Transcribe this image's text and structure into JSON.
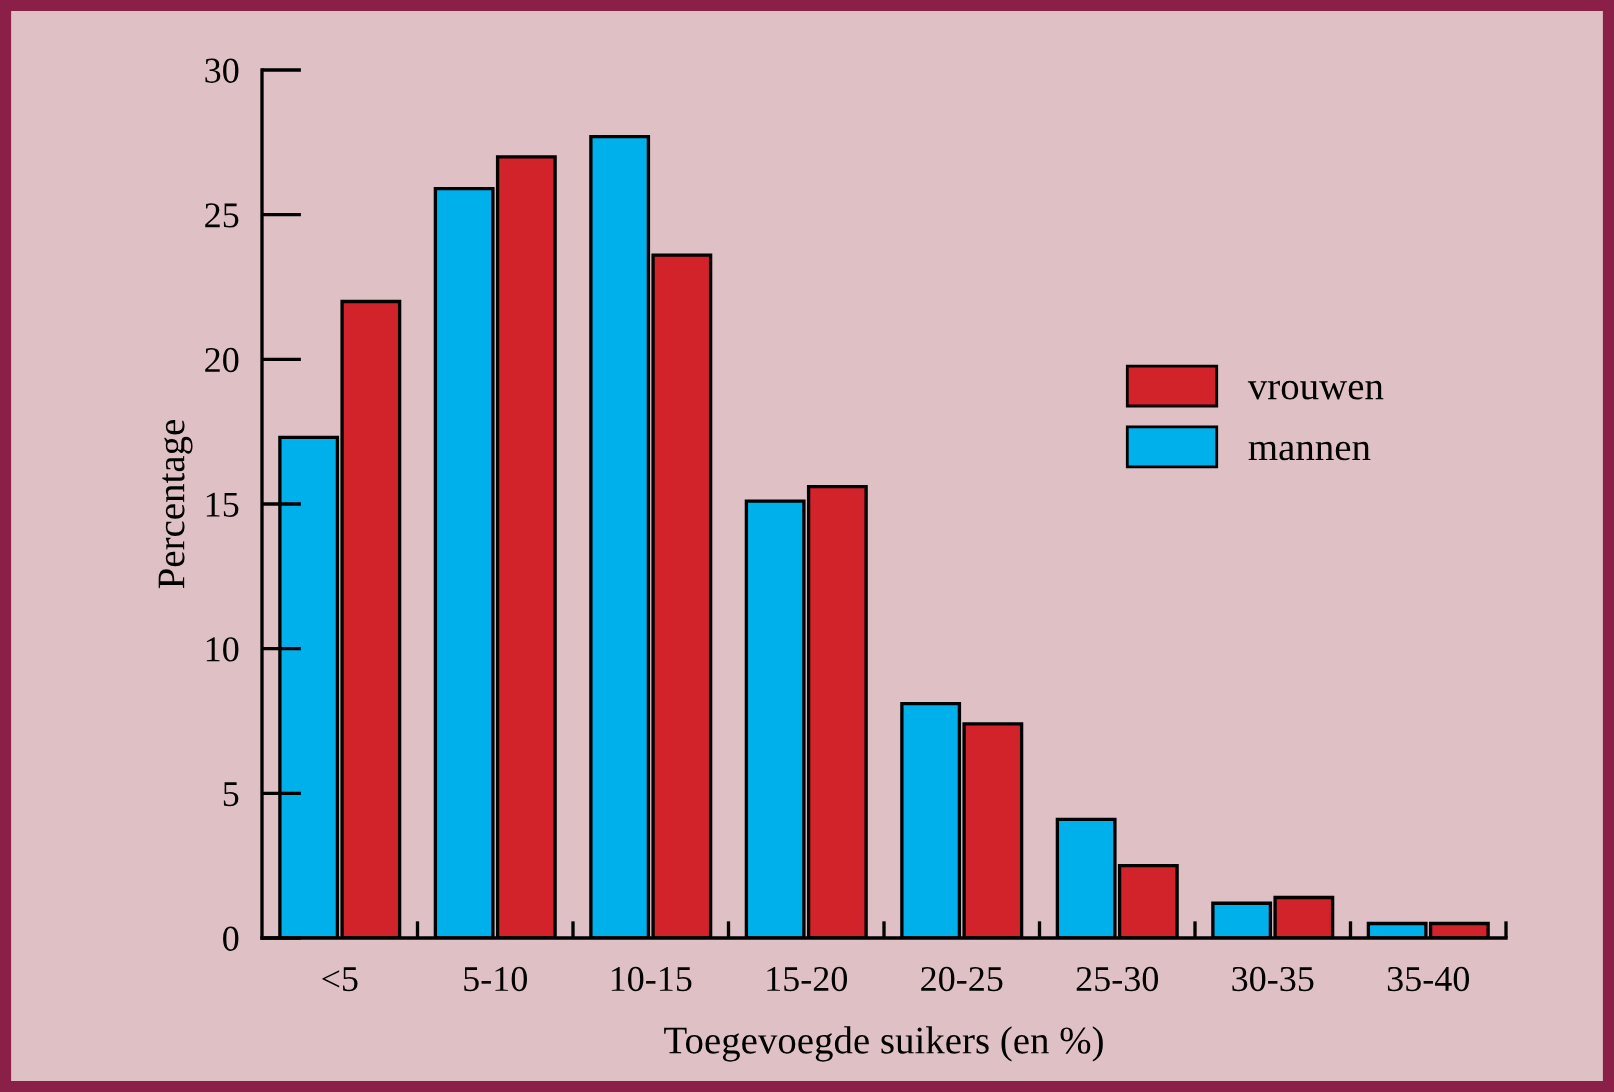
{
  "chart_data": {
    "type": "bar",
    "xlabel": "Toegevoegde suikers (en %)",
    "ylabel": "Percentage",
    "categories": [
      "<5",
      "5-10",
      "10-15",
      "15-20",
      "20-25",
      "25-30",
      "30-35",
      "35-40"
    ],
    "series": [
      {
        "name": "mannen",
        "color": "#00b0ea",
        "values": [
          17.3,
          25.9,
          27.7,
          15.1,
          8.1,
          4.1,
          1.2,
          0.5
        ]
      },
      {
        "name": "vrouwen",
        "color": "#d2232b",
        "values": [
          22.0,
          27.0,
          23.6,
          15.6,
          7.4,
          2.5,
          1.4,
          0.5
        ]
      }
    ],
    "ylim": [
      0,
      30
    ],
    "yticks": [
      0,
      5,
      10,
      15,
      20,
      25,
      30
    ],
    "grid": false,
    "legend": "right"
  }
}
